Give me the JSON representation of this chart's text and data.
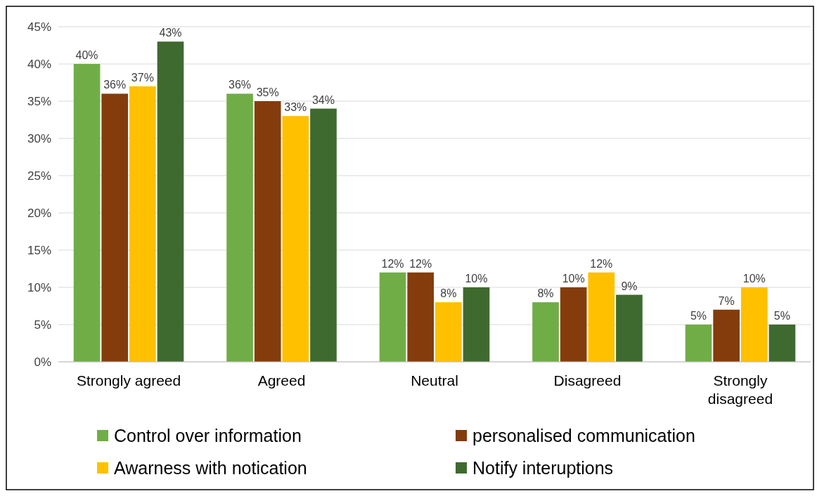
{
  "chart_data": {
    "type": "bar",
    "categories": [
      "Strongly agreed",
      "Agreed",
      "Neutral",
      "Disagreed",
      "Strongly disagreed"
    ],
    "series": [
      {
        "name": "Control over information",
        "color": "#70ad47",
        "values": [
          40,
          36,
          12,
          8,
          5
        ],
        "value_labels": [
          "40%",
          "36%",
          "12%",
          "8%",
          "5%"
        ]
      },
      {
        "name": "personalised communication",
        "color": "#843c0c",
        "values": [
          36,
          35,
          12,
          10,
          7
        ],
        "value_labels": [
          "36%",
          "35%",
          "12%",
          "10%",
          "7%"
        ]
      },
      {
        "name": "Awarness with notication",
        "color": "#ffc000",
        "values": [
          37,
          33,
          8,
          12,
          10
        ],
        "value_labels": [
          "37%",
          "33%",
          "8%",
          "12%",
          "10%"
        ]
      },
      {
        "name": "Notify interuptions",
        "color": "#3f6a2f",
        "values": [
          43,
          34,
          10,
          9,
          5
        ],
        "value_labels": [
          "43%",
          "34%",
          "10%",
          "9%",
          "5%"
        ]
      }
    ],
    "ylim": [
      0,
      45
    ],
    "yticks": [
      {
        "value": 0,
        "label": "0%"
      },
      {
        "value": 5,
        "label": "5%"
      },
      {
        "value": 10,
        "label": "10%"
      },
      {
        "value": 15,
        "label": "15%"
      },
      {
        "value": 20,
        "label": "20%"
      },
      {
        "value": 25,
        "label": "25%"
      },
      {
        "value": 30,
        "label": "30%"
      },
      {
        "value": 35,
        "label": "35%"
      },
      {
        "value": 40,
        "label": "40%"
      },
      {
        "value": 45,
        "label": "45%"
      }
    ],
    "grid": "y",
    "legend": "bottom"
  }
}
